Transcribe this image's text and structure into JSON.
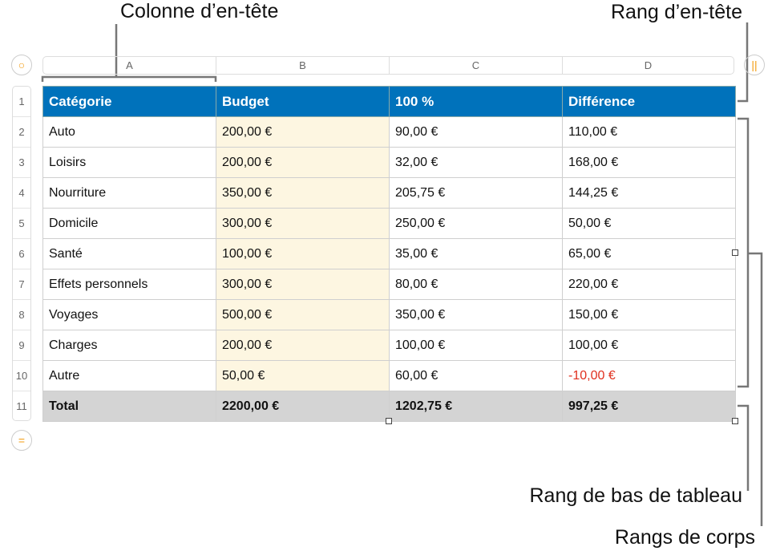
{
  "callouts": {
    "header_column": "Colonne d’en-tête",
    "header_row": "Rang d’en-tête",
    "footer_row": "Rang de bas de tableau",
    "body_rows": "Rangs de corps"
  },
  "column_letters": [
    "A",
    "B",
    "C",
    "D"
  ],
  "row_numbers": [
    "1",
    "2",
    "3",
    "4",
    "5",
    "6",
    "7",
    "8",
    "9",
    "10",
    "11"
  ],
  "table": {
    "header": [
      "Catégorie",
      "Budget",
      "100 %",
      "Différence"
    ],
    "rows": [
      [
        "Auto",
        "200,00 €",
        "90,00 €",
        "110,00 €"
      ],
      [
        "Loisirs",
        "200,00 €",
        "32,00 €",
        "168,00 €"
      ],
      [
        "Nourriture",
        "350,00 €",
        "205,75 €",
        "144,25 €"
      ],
      [
        "Domicile",
        "300,00 €",
        "250,00 €",
        "50,00 €"
      ],
      [
        "Santé",
        "100,00 €",
        "35,00 €",
        "65,00 €"
      ],
      [
        "Effets personnels",
        "300,00 €",
        "80,00 €",
        "220,00 €"
      ],
      [
        "Voyages",
        "500,00 €",
        "350,00 €",
        "150,00 €"
      ],
      [
        "Charges",
        "200,00 €",
        "100,00 €",
        "100,00 €"
      ],
      [
        "Autre",
        "50,00 €",
        "60,00 €",
        "-10,00 €"
      ]
    ],
    "footer": [
      "Total",
      "2200,00 €",
      "1202,75 €",
      "997,25 €"
    ]
  },
  "colors": {
    "header_bg": "#0072bb",
    "budget_bg": "#fdf6e1",
    "footer_bg": "#d4d4d4",
    "negative": "#e0301e",
    "control_accent": "#f39c12"
  }
}
